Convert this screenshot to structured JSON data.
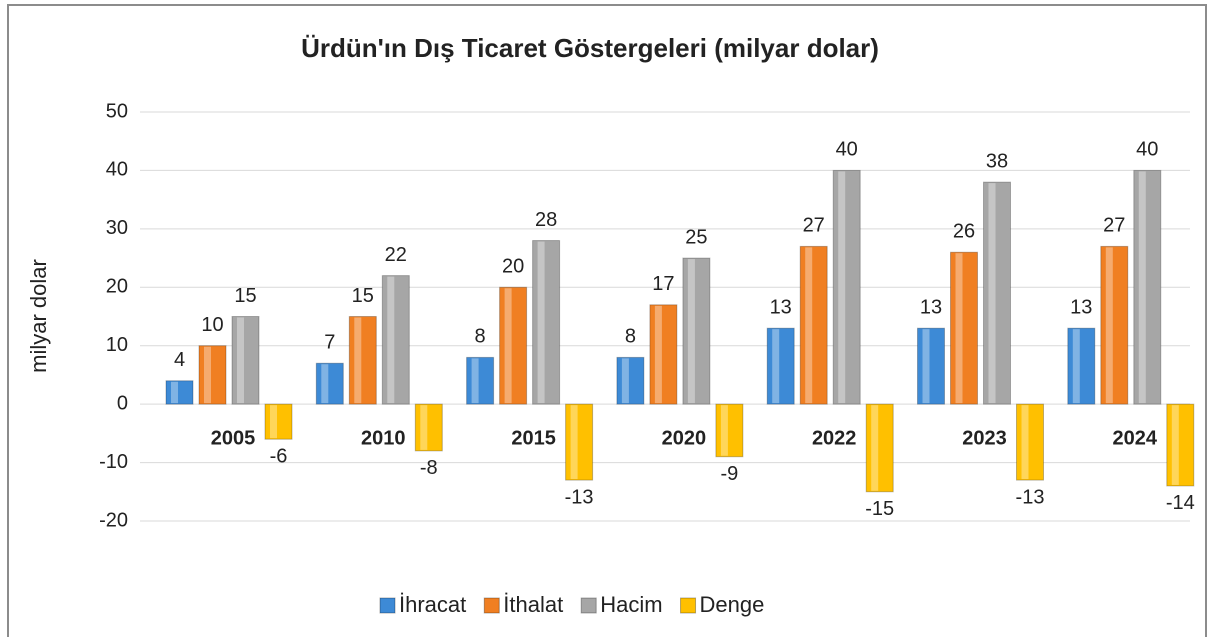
{
  "chart_data": {
    "type": "bar",
    "title": "Ürdün'ın Dış Ticaret Göstergeleri (milyar dolar)",
    "y_label": "milyar dolar",
    "categories": [
      "2005",
      "2010",
      "2015",
      "2020",
      "2022",
      "2023",
      "2024"
    ],
    "series": [
      {
        "name": "İhracat",
        "color": "#3d8ad6",
        "values": [
          4,
          7,
          8,
          8,
          13,
          13,
          13
        ]
      },
      {
        "name": "İthalat",
        "color": "#f07f22",
        "values": [
          10,
          15,
          20,
          17,
          27,
          26,
          27
        ]
      },
      {
        "name": "Hacim",
        "color": "#a6a6a6",
        "values": [
          15,
          22,
          28,
          25,
          40,
          38,
          40
        ]
      },
      {
        "name": "Denge",
        "color": "#ffc000",
        "values": [
          -6,
          -8,
          -13,
          -9,
          -15,
          -13,
          -14
        ]
      }
    ],
    "ylim": [
      -20,
      50
    ],
    "yticks": [
      -20,
      -10,
      0,
      10,
      20,
      30,
      40,
      50
    ],
    "grid": true,
    "legend": "bottom"
  }
}
